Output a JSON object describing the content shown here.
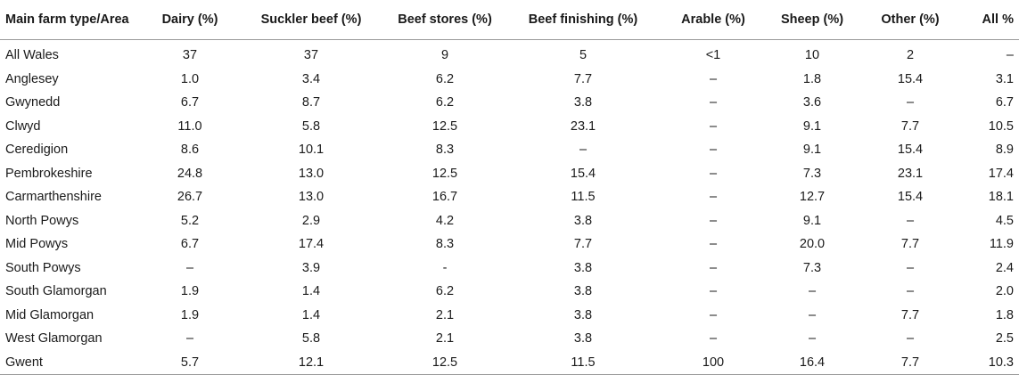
{
  "table": {
    "headers": [
      "Main farm type/Area",
      "Dairy (%)",
      "Suckler beef (%)",
      "Beef stores (%)",
      "Beef finishing (%)",
      "Arable (%)",
      "Sheep (%)",
      "Other (%)",
      "All %"
    ],
    "rows": [
      [
        "All Wales",
        "37",
        "37",
        "9",
        "5",
        "<1",
        "10",
        "2",
        "–"
      ],
      [
        "Anglesey",
        "1.0",
        "3.4",
        "6.2",
        "7.7",
        "–",
        "1.8",
        "15.4",
        "3.1"
      ],
      [
        "Gwynedd",
        "6.7",
        "8.7",
        "6.2",
        "3.8",
        "–",
        "3.6",
        "–",
        "6.7"
      ],
      [
        "Clwyd",
        "11.0",
        "5.8",
        "12.5",
        "23.1",
        "–",
        "9.1",
        "7.7",
        "10.5"
      ],
      [
        "Ceredigion",
        "8.6",
        "10.1",
        "8.3",
        "–",
        "–",
        "9.1",
        "15.4",
        "8.9"
      ],
      [
        "Pembrokeshire",
        "24.8",
        "13.0",
        "12.5",
        "15.4",
        "–",
        "7.3",
        "23.1",
        "17.4"
      ],
      [
        "Carmarthenshire",
        "26.7",
        "13.0",
        "16.7",
        "11.5",
        "–",
        "12.7",
        "15.4",
        "18.1"
      ],
      [
        "North Powys",
        "5.2",
        "2.9",
        "4.2",
        "3.8",
        "–",
        "9.1",
        "–",
        "4.5"
      ],
      [
        "Mid Powys",
        "6.7",
        "17.4",
        "8.3",
        "7.7",
        "–",
        "20.0",
        "7.7",
        "11.9"
      ],
      [
        "South Powys",
        "–",
        "3.9",
        "-",
        "3.8",
        "–",
        "7.3",
        "–",
        "2.4"
      ],
      [
        "South Glamorgan",
        "1.9",
        "1.4",
        "6.2",
        "3.8",
        "–",
        "–",
        "–",
        "2.0"
      ],
      [
        "Mid Glamorgan",
        "1.9",
        "1.4",
        "2.1",
        "3.8",
        "–",
        "–",
        "7.7",
        "1.8"
      ],
      [
        "West Glamorgan",
        "–",
        "5.8",
        "2.1",
        "3.8",
        "–",
        "–",
        "–",
        "2.5"
      ],
      [
        "Gwent",
        "5.7",
        "12.1",
        "12.5",
        "11.5",
        "100",
        "16.4",
        "7.7",
        "10.3"
      ]
    ]
  }
}
